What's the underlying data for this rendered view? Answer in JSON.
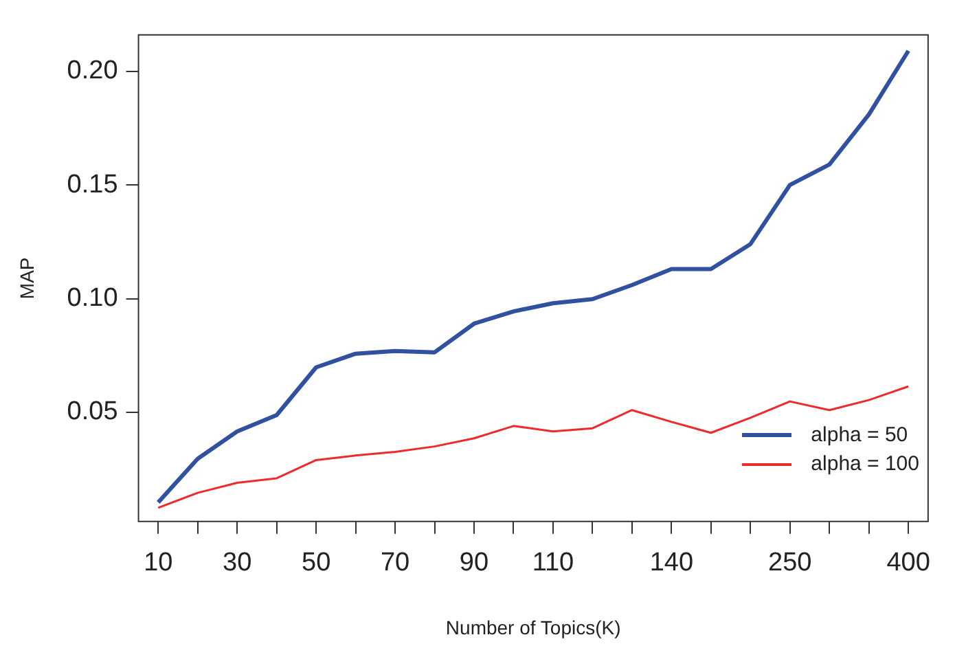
{
  "chart_data": {
    "type": "line",
    "xlabel": "Number of Topics(K)",
    "ylabel": "MAP",
    "categories": [
      "10",
      null,
      "30",
      null,
      "50",
      null,
      "70",
      null,
      "90",
      null,
      "110",
      null,
      null,
      "140",
      null,
      null,
      "250",
      null,
      null,
      "400"
    ],
    "series": [
      {
        "name": "alpha = 50",
        "color": "#3050a0",
        "values": [
          0.0104,
          0.0296,
          0.0416,
          0.0488,
          0.0698,
          0.0758,
          0.077,
          0.0764,
          0.089,
          0.0944,
          0.098,
          0.0998,
          0.106,
          0.113,
          0.113,
          0.124,
          0.15,
          0.159,
          0.181,
          0.209
        ]
      },
      {
        "name": "alpha = 100",
        "color": "#ee2a2a",
        "values": [
          0.008,
          0.0146,
          0.019,
          0.021,
          0.029,
          0.031,
          0.0326,
          0.035,
          0.0386,
          0.044,
          0.0416,
          0.043,
          0.051,
          0.0458,
          0.041,
          0.0476,
          0.0548,
          0.051,
          0.0554,
          0.0614
        ]
      }
    ],
    "ylim": [
      0.002,
      0.216
    ],
    "yticks": [
      {
        "value": 0.05,
        "label": "0.05"
      },
      {
        "value": 0.1,
        "label": "0.10"
      },
      {
        "value": 0.15,
        "label": "0.15"
      },
      {
        "value": 0.2,
        "label": "0.20"
      }
    ],
    "grid": false,
    "legend": "bottom right",
    "marker": "none",
    "line_style": "solid"
  }
}
